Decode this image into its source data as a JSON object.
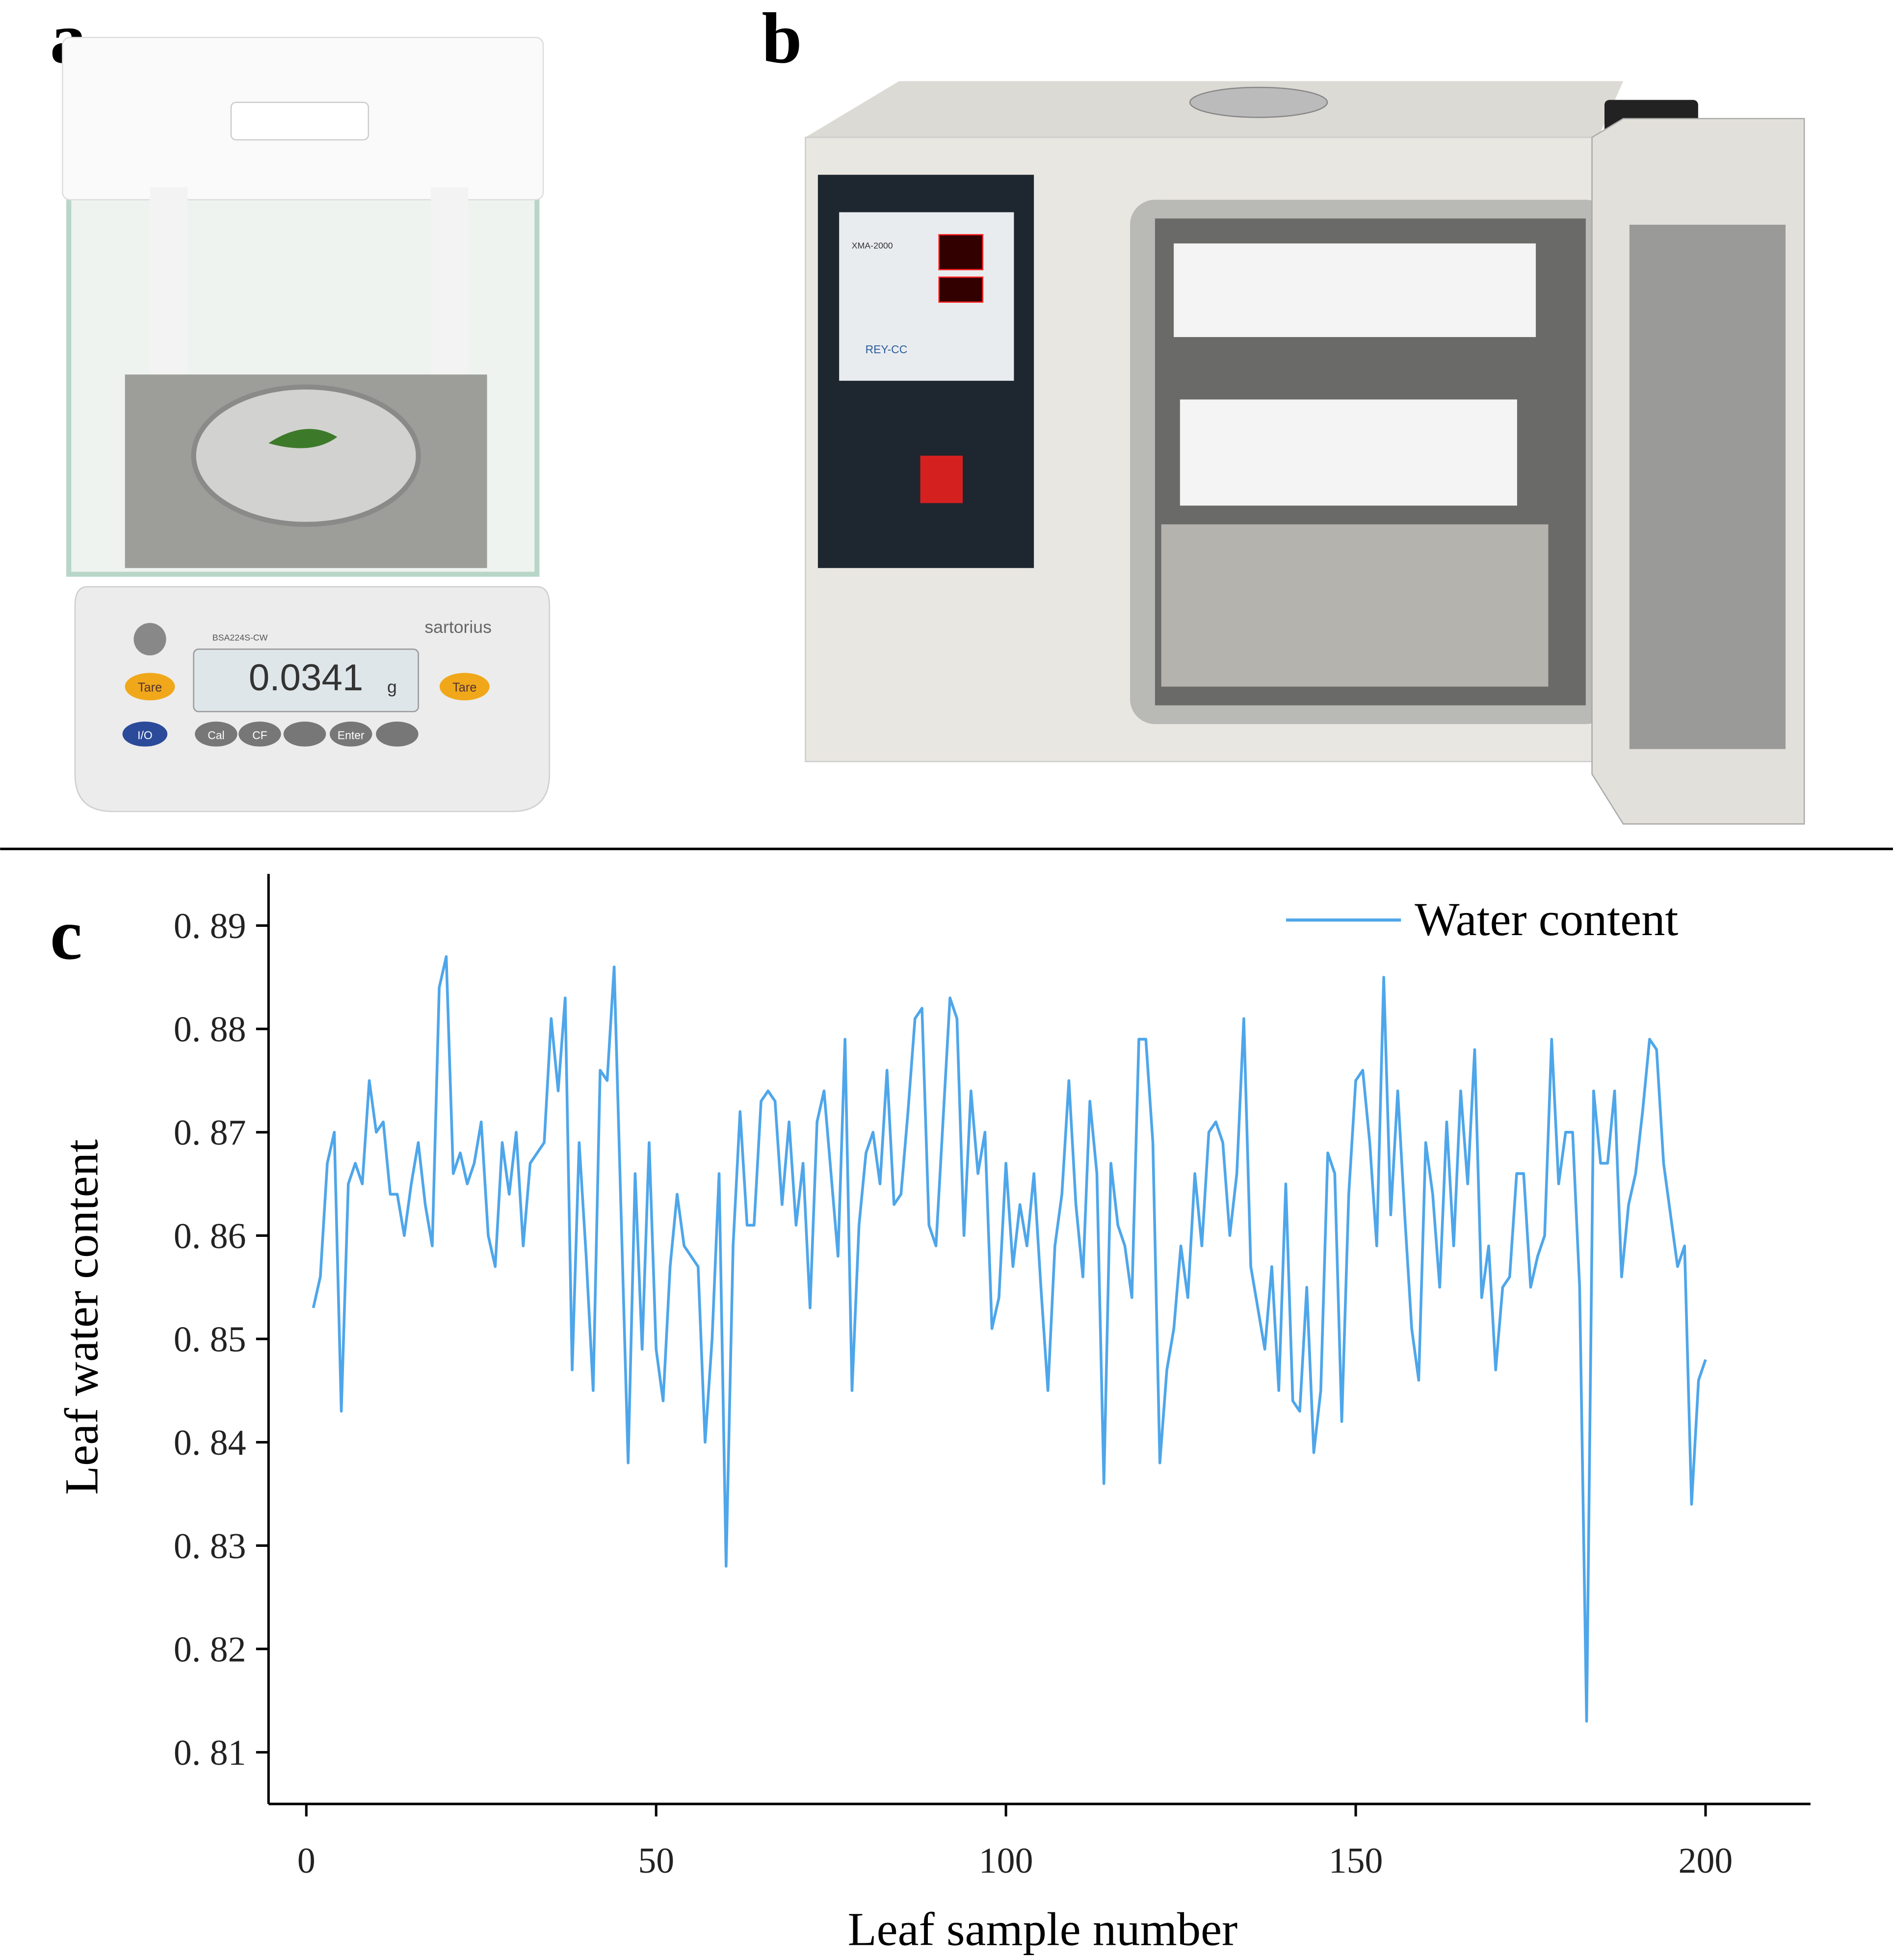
{
  "panels": {
    "a": "a",
    "b": "b",
    "c": "c"
  },
  "balance": {
    "brand": "sartorius",
    "model": "BSA224S-CW",
    "display": "0.0341",
    "unit": "g",
    "buttons": [
      "Tare",
      "Tare",
      "I/O",
      "Cal",
      "CF",
      "Enter"
    ]
  },
  "oven": {
    "brand": "REY-CC",
    "controller": "XMA-2000"
  },
  "chart_data": {
    "type": "line",
    "x_label": "Leaf sample number",
    "y_label": "Leaf  water  content",
    "x": [
      1,
      2,
      3,
      4,
      5,
      6,
      7,
      8,
      9,
      10,
      11,
      12,
      13,
      14,
      15,
      16,
      17,
      18,
      19,
      20,
      21,
      22,
      23,
      24,
      25,
      26,
      27,
      28,
      29,
      30,
      31,
      32,
      33,
      34,
      35,
      36,
      37,
      38,
      39,
      40,
      41,
      42,
      43,
      44,
      45,
      46,
      47,
      48,
      49,
      50,
      51,
      52,
      53,
      54,
      55,
      56,
      57,
      58,
      59,
      60,
      61,
      62,
      63,
      64,
      65,
      66,
      67,
      68,
      69,
      70,
      71,
      72,
      73,
      74,
      75,
      76,
      77,
      78,
      79,
      80,
      81,
      82,
      83,
      84,
      85,
      86,
      87,
      88,
      89,
      90,
      91,
      92,
      93,
      94,
      95,
      96,
      97,
      98,
      99,
      100,
      101,
      102,
      103,
      104,
      105,
      106,
      107,
      108,
      109,
      110,
      111,
      112,
      113,
      114,
      115,
      116,
      117,
      118,
      119,
      120,
      121,
      122,
      123,
      124,
      125,
      126,
      127,
      128,
      129,
      130,
      131,
      132,
      133,
      134,
      135,
      136,
      137,
      138,
      139,
      140,
      141,
      142,
      143,
      144,
      145,
      146,
      147,
      148,
      149,
      150,
      151,
      152,
      153,
      154,
      155,
      156,
      157,
      158,
      159,
      160,
      161,
      162,
      163,
      164,
      165,
      166,
      167,
      168,
      169,
      170,
      171,
      172,
      173,
      174,
      175,
      176,
      177,
      178,
      179,
      180,
      181,
      182,
      183,
      184,
      185,
      186,
      187,
      188,
      189,
      190,
      191,
      192,
      193,
      194,
      195,
      196,
      197,
      198,
      199,
      200
    ],
    "series": [
      {
        "name": "Water content",
        "color": "#4ea6ea",
        "values": [
          0.853,
          0.856,
          0.867,
          0.87,
          0.843,
          0.865,
          0.867,
          0.865,
          0.875,
          0.87,
          0.871,
          0.864,
          0.864,
          0.86,
          0.865,
          0.869,
          0.863,
          0.859,
          0.884,
          0.887,
          0.866,
          0.868,
          0.865,
          0.867,
          0.871,
          0.86,
          0.857,
          0.869,
          0.864,
          0.87,
          0.859,
          0.867,
          0.868,
          0.869,
          0.881,
          0.874,
          0.883,
          0.847,
          0.869,
          0.858,
          0.845,
          0.876,
          0.875,
          0.886,
          0.862,
          0.838,
          0.866,
          0.849,
          0.869,
          0.849,
          0.844,
          0.857,
          0.864,
          0.859,
          0.858,
          0.857,
          0.84,
          0.85,
          0.866,
          0.828,
          0.859,
          0.872,
          0.861,
          0.861,
          0.873,
          0.874,
          0.873,
          0.863,
          0.871,
          0.861,
          0.867,
          0.853,
          0.871,
          0.874,
          0.866,
          0.858,
          0.879,
          0.845,
          0.861,
          0.868,
          0.87,
          0.865,
          0.876,
          0.863,
          0.864,
          0.872,
          0.881,
          0.882,
          0.861,
          0.859,
          0.871,
          0.883,
          0.881,
          0.86,
          0.874,
          0.866,
          0.87,
          0.851,
          0.854,
          0.867,
          0.857,
          0.863,
          0.859,
          0.866,
          0.855,
          0.845,
          0.859,
          0.864,
          0.875,
          0.863,
          0.856,
          0.873,
          0.866,
          0.836,
          0.867,
          0.861,
          0.859,
          0.854,
          0.879,
          0.879,
          0.869,
          0.838,
          0.847,
          0.851,
          0.859,
          0.854,
          0.866,
          0.859,
          0.87,
          0.871,
          0.869,
          0.86,
          0.866,
          0.881,
          0.857,
          0.853,
          0.849,
          0.857,
          0.845,
          0.865,
          0.844,
          0.843,
          0.855,
          0.839,
          0.845,
          0.868,
          0.866,
          0.842,
          0.864,
          0.875,
          0.876,
          0.869,
          0.859,
          0.885,
          0.862,
          0.874,
          0.862,
          0.851,
          0.846,
          0.869,
          0.864,
          0.855,
          0.871,
          0.859,
          0.874,
          0.865,
          0.878,
          0.854,
          0.859,
          0.847,
          0.855,
          0.856,
          0.866,
          0.866,
          0.855,
          0.858,
          0.86,
          0.879,
          0.865,
          0.87,
          0.87,
          0.855,
          0.813,
          0.874,
          0.867,
          0.867,
          0.874,
          0.856,
          0.863,
          0.866,
          0.872,
          0.879,
          0.878,
          0.867,
          0.862,
          0.857,
          0.859,
          0.834,
          0.846,
          0.848
        ]
      }
    ],
    "xlim": [
      -5.4,
      215
    ],
    "ylim": [
      0.805,
      0.895
    ],
    "xticks": [
      0,
      50,
      100,
      150,
      200
    ],
    "yticks": [
      {
        "value": 0.81,
        "label": "0. 81"
      },
      {
        "value": 0.82,
        "label": "0. 82"
      },
      {
        "value": 0.83,
        "label": "0. 83"
      },
      {
        "value": 0.84,
        "label": "0. 84"
      },
      {
        "value": 0.85,
        "label": "0. 85"
      },
      {
        "value": 0.86,
        "label": "0. 86"
      },
      {
        "value": 0.87,
        "label": "0. 87"
      },
      {
        "value": 0.88,
        "label": "0. 88"
      },
      {
        "value": 0.89,
        "label": "0. 89"
      }
    ],
    "legend": "upper right"
  }
}
